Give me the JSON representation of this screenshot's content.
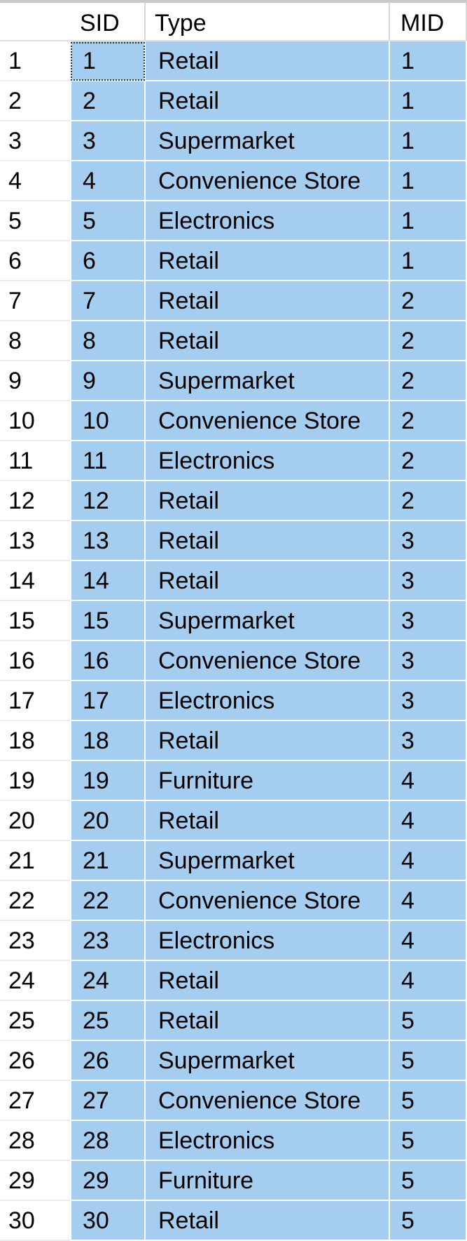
{
  "grid": {
    "columns": [
      "SID",
      "Type",
      "MID"
    ],
    "rows": [
      {
        "num": "1",
        "sid": "1",
        "type": "Retail",
        "mid": "1"
      },
      {
        "num": "2",
        "sid": "2",
        "type": "Retail",
        "mid": "1"
      },
      {
        "num": "3",
        "sid": "3",
        "type": "Supermarket",
        "mid": "1"
      },
      {
        "num": "4",
        "sid": "4",
        "type": "Convenience Store",
        "mid": "1"
      },
      {
        "num": "5",
        "sid": "5",
        "type": "Electronics",
        "mid": "1"
      },
      {
        "num": "6",
        "sid": "6",
        "type": "Retail",
        "mid": "1"
      },
      {
        "num": "7",
        "sid": "7",
        "type": "Retail",
        "mid": "2"
      },
      {
        "num": "8",
        "sid": "8",
        "type": "Retail",
        "mid": "2"
      },
      {
        "num": "9",
        "sid": "9",
        "type": "Supermarket",
        "mid": "2"
      },
      {
        "num": "10",
        "sid": "10",
        "type": "Convenience Store",
        "mid": "2"
      },
      {
        "num": "11",
        "sid": "11",
        "type": "Electronics",
        "mid": "2"
      },
      {
        "num": "12",
        "sid": "12",
        "type": "Retail",
        "mid": "2"
      },
      {
        "num": "13",
        "sid": "13",
        "type": "Retail",
        "mid": "3"
      },
      {
        "num": "14",
        "sid": "14",
        "type": "Retail",
        "mid": "3"
      },
      {
        "num": "15",
        "sid": "15",
        "type": "Supermarket",
        "mid": "3"
      },
      {
        "num": "16",
        "sid": "16",
        "type": "Convenience Store",
        "mid": "3"
      },
      {
        "num": "17",
        "sid": "17",
        "type": "Electronics",
        "mid": "3"
      },
      {
        "num": "18",
        "sid": "18",
        "type": "Retail",
        "mid": "3"
      },
      {
        "num": "19",
        "sid": "19",
        "type": "Furniture",
        "mid": "4"
      },
      {
        "num": "20",
        "sid": "20",
        "type": "Retail",
        "mid": "4"
      },
      {
        "num": "21",
        "sid": "21",
        "type": "Supermarket",
        "mid": "4"
      },
      {
        "num": "22",
        "sid": "22",
        "type": "Convenience Store",
        "mid": "4"
      },
      {
        "num": "23",
        "sid": "23",
        "type": "Electronics",
        "mid": "4"
      },
      {
        "num": "24",
        "sid": "24",
        "type": "Retail",
        "mid": "4"
      },
      {
        "num": "25",
        "sid": "25",
        "type": "Retail",
        "mid": "5"
      },
      {
        "num": "26",
        "sid": "26",
        "type": "Supermarket",
        "mid": "5"
      },
      {
        "num": "27",
        "sid": "27",
        "type": "Convenience Store",
        "mid": "5"
      },
      {
        "num": "28",
        "sid": "28",
        "type": "Electronics",
        "mid": "5"
      },
      {
        "num": "29",
        "sid": "29",
        "type": "Furniture",
        "mid": "5"
      },
      {
        "num": "30",
        "sid": "30",
        "type": "Retail",
        "mid": "5"
      }
    ]
  },
  "colors": {
    "selection": "#a4cdf0",
    "gridline": "#ffffff",
    "header_bg": "#ffffff"
  }
}
